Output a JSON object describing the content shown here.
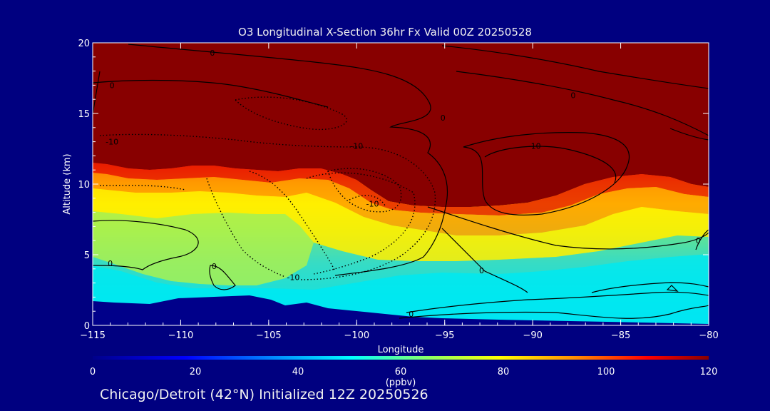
{
  "chart_data": {
    "type": "heatmap",
    "title": "O3 Longitudinal X-Section 36hr  Fx Valid 00Z 20250528",
    "xlabel": "Longitude",
    "ylabel": "Altitude (km)",
    "xlim": [
      -115,
      -80
    ],
    "ylim": [
      0,
      20
    ],
    "xticks": [
      -115,
      -110,
      -105,
      -100,
      -95,
      -90,
      -85,
      -80
    ],
    "xtick_labels": [
      "−115",
      "−110",
      "−105",
      "−100",
      "−95",
      "−90",
      "−85",
      "−80"
    ],
    "yticks": [
      0,
      5,
      10,
      15,
      20
    ],
    "ytick_labels": [
      "0",
      "5",
      "10",
      "15",
      "20"
    ],
    "colorbar": {
      "label": "(ppbv)",
      "range": [
        0,
        120
      ],
      "ticks": [
        0,
        20,
        40,
        60,
        80,
        100,
        120
      ],
      "tick_labels": [
        "0",
        "20",
        "40",
        "60",
        "80",
        "100",
        "120"
      ]
    },
    "background_colors": {
      "terrain": "#00008a",
      "high_ozone": "#880000"
    },
    "ozone_ppbv_samples": [
      {
        "x": -112,
        "y": 2,
        "value": 45
      },
      {
        "x": -108,
        "y": 4,
        "value": 55
      },
      {
        "x": -104,
        "y": 6,
        "value": 65
      },
      {
        "x": -100,
        "y": 8,
        "value": 75
      },
      {
        "x": -96,
        "y": 6,
        "value": 70
      },
      {
        "x": -90,
        "y": 3,
        "value": 45
      },
      {
        "x": -85,
        "y": 1,
        "value": 40
      },
      {
        "x": -82,
        "y": 7,
        "value": 75
      },
      {
        "x": -112,
        "y": 13,
        "value": 120
      },
      {
        "x": -90,
        "y": 15,
        "value": 120
      }
    ],
    "contour_labels": [
      {
        "x": -108.2,
        "y": 19.3,
        "text": "0"
      },
      {
        "x": -113.9,
        "y": 17.0,
        "text": "0"
      },
      {
        "x": -113.9,
        "y": 13.0,
        "text": "-10"
      },
      {
        "x": -100.0,
        "y": 12.7,
        "text": "-10"
      },
      {
        "x": -87.7,
        "y": 16.3,
        "text": "0"
      },
      {
        "x": -95.1,
        "y": 14.7,
        "text": "0"
      },
      {
        "x": -89.9,
        "y": 12.7,
        "text": "-10"
      },
      {
        "x": -99.1,
        "y": 8.6,
        "text": "-10"
      },
      {
        "x": -114.0,
        "y": 4.4,
        "text": "0"
      },
      {
        "x": -108.1,
        "y": 4.2,
        "text": "0"
      },
      {
        "x": -103.6,
        "y": 3.4,
        "text": "-10"
      },
      {
        "x": -92.9,
        "y": 3.9,
        "text": "0"
      },
      {
        "x": -96.9,
        "y": 0.8,
        "text": "0"
      },
      {
        "x": -80.6,
        "y": 6.0,
        "text": "0"
      }
    ]
  },
  "footer": "Chicago/Detroit (42°N) Initialized 12Z 20250526"
}
